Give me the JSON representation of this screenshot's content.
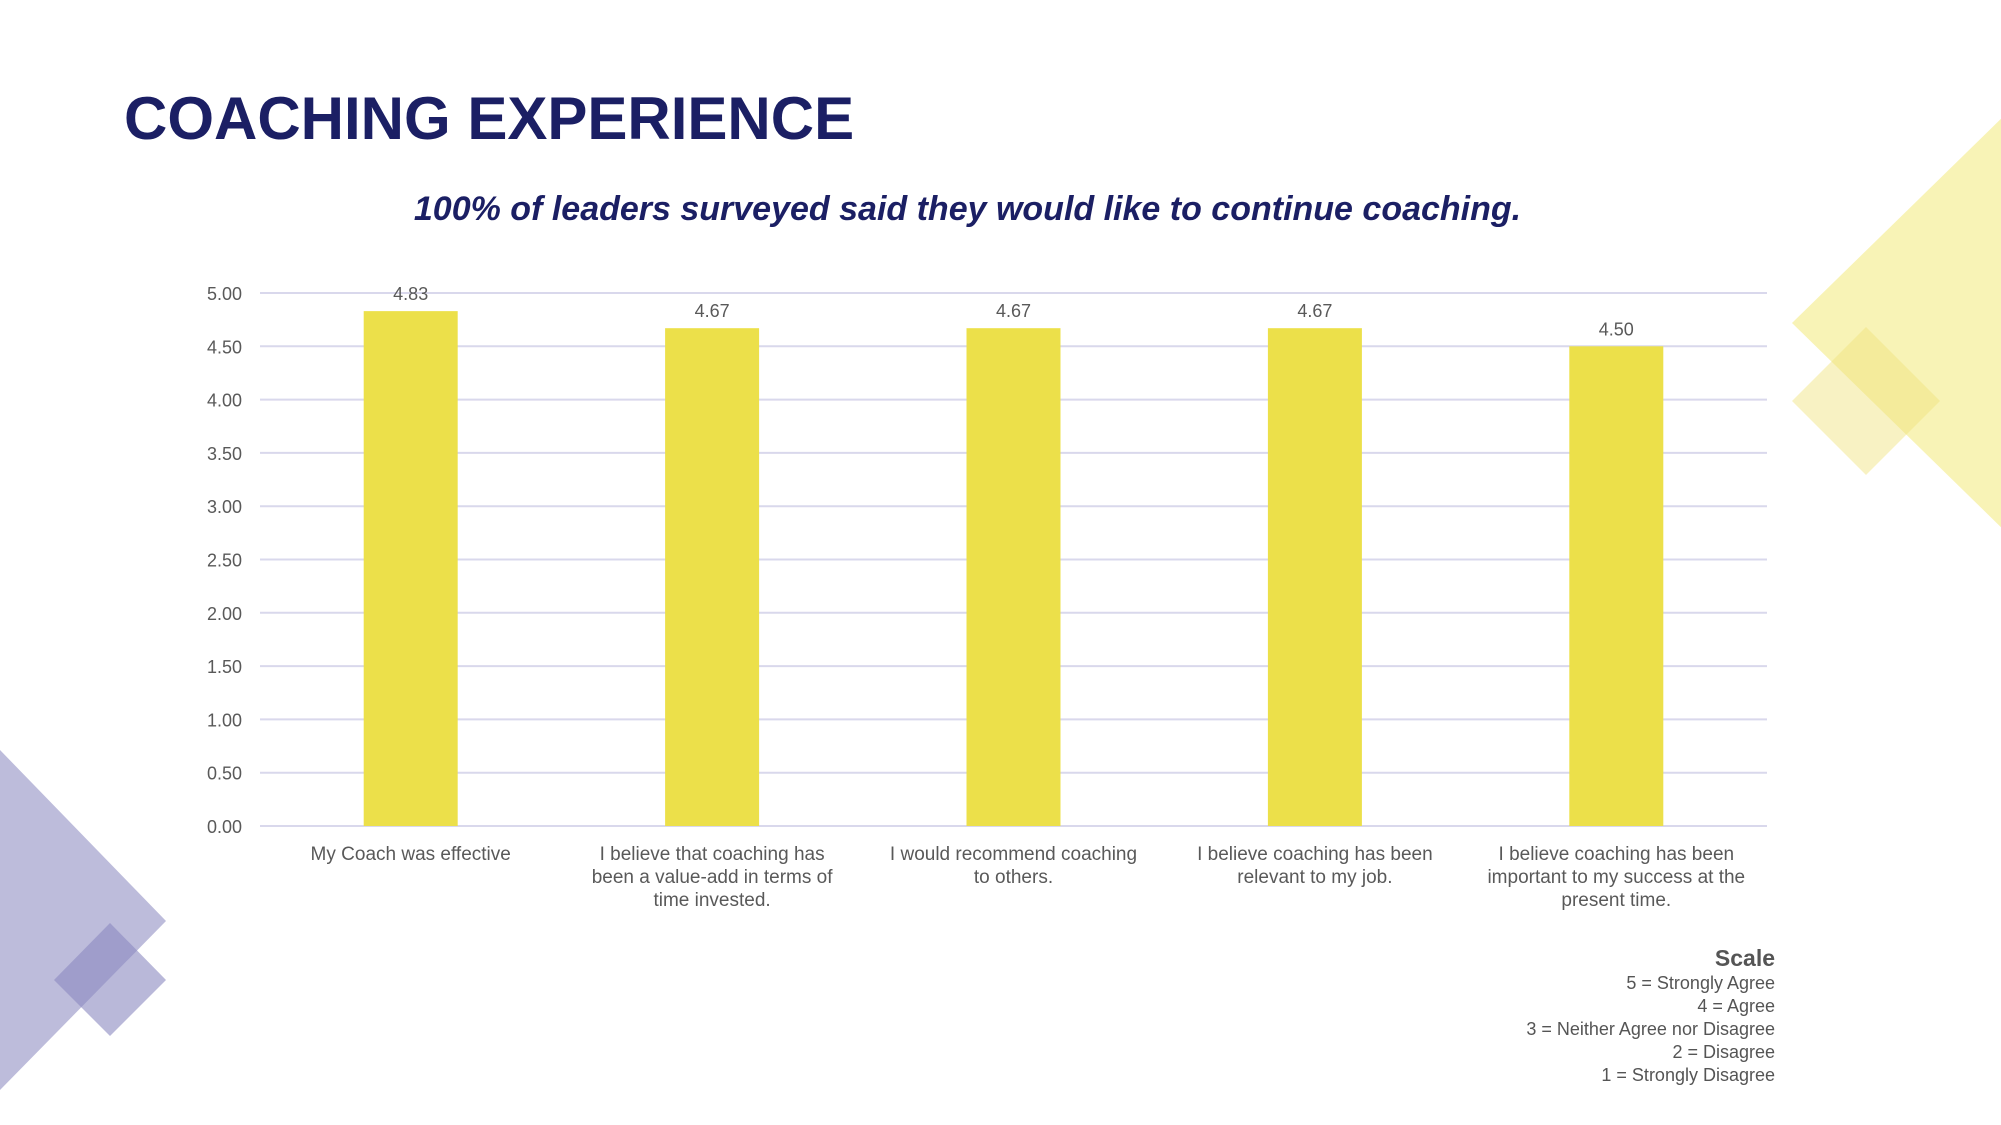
{
  "title": "COACHING EXPERIENCE",
  "subtitle": "100% of leaders surveyed said they would like to continue coaching.",
  "chart_data": {
    "type": "bar",
    "title": "",
    "xlabel": "",
    "ylabel": "",
    "ylim": [
      0,
      5
    ],
    "yticks": [
      "0.00",
      "0.50",
      "1.00",
      "1.50",
      "2.00",
      "2.50",
      "3.00",
      "3.50",
      "4.00",
      "4.50",
      "5.00"
    ],
    "grid": true,
    "categories": [
      [
        "My Coach was effective"
      ],
      [
        "I believe that coaching has",
        "been a value-add in terms of",
        "time invested."
      ],
      [
        "I would recommend coaching",
        "to others."
      ],
      [
        "I believe coaching has been",
        "relevant to my job."
      ],
      [
        "I believe coaching has been",
        "important to my success at the",
        "present time."
      ]
    ],
    "values": [
      4.83,
      4.67,
      4.67,
      4.67,
      4.5
    ],
    "data_labels": [
      "4.83",
      "4.67",
      "4.67",
      "4.67",
      "4.50"
    ],
    "bar_color": "#ece04a"
  },
  "scale": {
    "heading": "Scale",
    "items": [
      "5 = Strongly Agree",
      "4 = Agree",
      "3 = Neither Agree nor Disagree",
      "2 = Disagree",
      "1 = Strongly Disagree"
    ]
  },
  "colors": {
    "navy": "#1b1f64",
    "yellow_deco": "#f3eb99",
    "purple_deco": "#a7a6cf"
  }
}
